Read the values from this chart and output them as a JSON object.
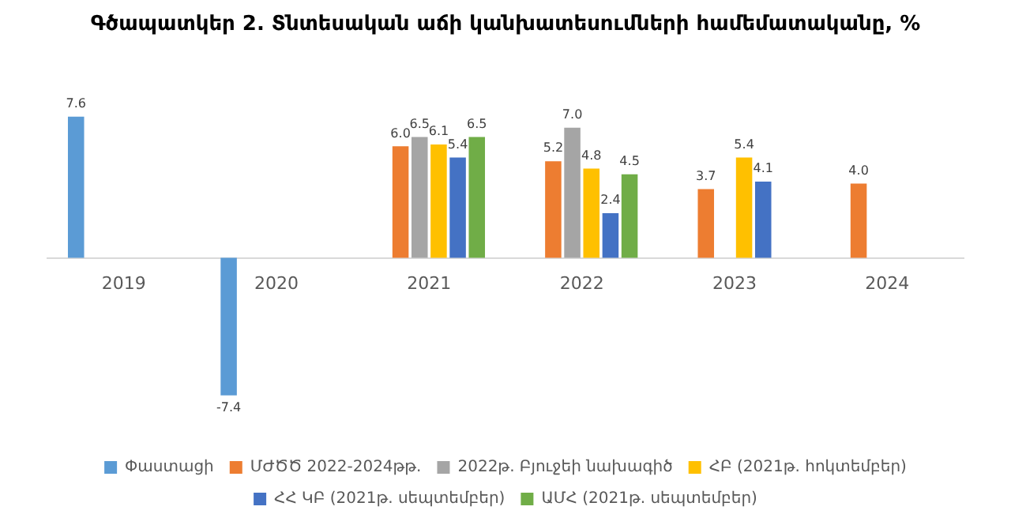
{
  "chart_data": {
    "type": "bar",
    "title": "Գծապատկեր 2. Տնտեսական աճի կանխատեսումների համեմատականը, %",
    "categories": [
      "2019",
      "2020",
      "2021",
      "2022",
      "2023",
      "2024"
    ],
    "series": [
      {
        "name": "Փաստացի",
        "color": "#5b9bd5",
        "values": [
          7.6,
          -7.4,
          null,
          null,
          null,
          null
        ],
        "value_labels": [
          "7.6",
          "-7.4",
          null,
          null,
          null,
          null
        ]
      },
      {
        "name": "ՄԺԾԾ 2022-2024թթ.",
        "color": "#ed7d31",
        "values": [
          null,
          null,
          6.0,
          5.2,
          3.7,
          4.0
        ],
        "value_labels": [
          null,
          null,
          "6.0",
          "5.2",
          "3.7",
          "4.0"
        ]
      },
      {
        "name": "2022թ. Բյուջեի նախագիծ",
        "color": "#a5a5a5",
        "values": [
          null,
          null,
          6.5,
          7.0,
          null,
          null
        ],
        "value_labels": [
          null,
          null,
          "6.5",
          "7.0",
          null,
          null
        ]
      },
      {
        "name": "ՀԲ (2021թ. հոկտեմբեր)",
        "color": "#ffc000",
        "values": [
          null,
          null,
          6.1,
          4.8,
          5.4,
          null
        ],
        "value_labels": [
          null,
          null,
          "6.1",
          "4.8",
          "5.4",
          null
        ]
      },
      {
        "name": "ՀՀ ԿԲ (2021թ. սեպտեմբեր)",
        "color": "#4472c4",
        "values": [
          null,
          null,
          5.4,
          2.4,
          4.1,
          null
        ],
        "value_labels": [
          null,
          null,
          "5.4",
          "2.4",
          "4.1",
          null
        ]
      },
      {
        "name": "ԱՄՀ (2021թ. սեպտեմբեր)",
        "color": "#70ad47",
        "values": [
          null,
          null,
          6.5,
          4.5,
          null,
          null
        ],
        "value_labels": [
          null,
          null,
          "6.5",
          "4.5",
          null,
          null
        ]
      }
    ],
    "grid": false,
    "legend": "bottom",
    "tick_labels": "x"
  }
}
